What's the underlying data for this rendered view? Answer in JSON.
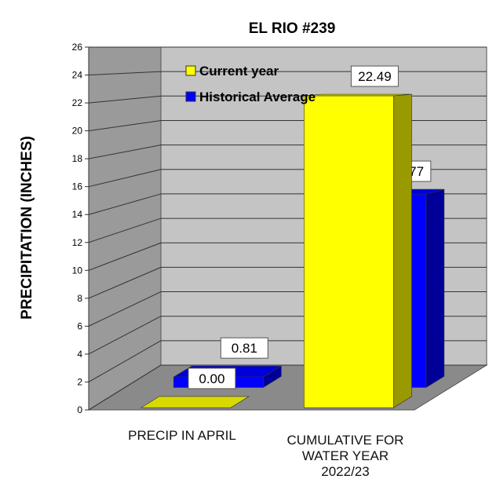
{
  "chart_data": {
    "type": "bar3d",
    "title": "EL RIO #239",
    "y_label": "PRECIPITATION  (INCHES)",
    "categories": [
      "PRECIP IN APRIL",
      "CUMULATIVE FOR WATER YEAR 2022/23"
    ],
    "series": [
      {
        "name": "Current year",
        "color": "#ffff00",
        "values": [
          0.0,
          22.49
        ],
        "value_labels": [
          "0.00",
          "22.49"
        ]
      },
      {
        "name": "Historical Average",
        "color": "#0000ff",
        "values": [
          0.81,
          14.77
        ],
        "value_labels": [
          "0.81",
          "14.77"
        ]
      }
    ],
    "ylim": [
      0,
      26
    ],
    "yticks": [
      0,
      2,
      4,
      6,
      8,
      10,
      12,
      14,
      16,
      18,
      20,
      22,
      24,
      26
    ],
    "grid": true
  }
}
